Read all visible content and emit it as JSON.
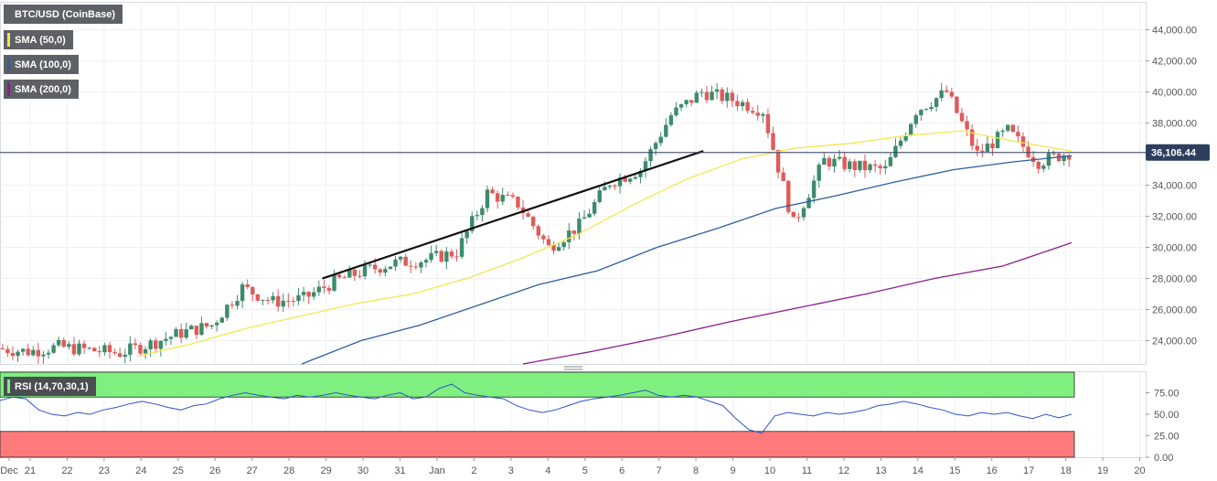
{
  "legends": {
    "symbol": "BTC/USD (CoinBase)",
    "sma50": "SMA (50,0)",
    "sma100": "SMA (100,0)",
    "sma200": "SMA (200,0)",
    "rsi": "RSI (14,70,30,1)"
  },
  "colors": {
    "up": "#3d8b6b",
    "down": "#e05a5a",
    "sma50": "#f2e84f",
    "sma100": "#2c5f9e",
    "sma200": "#8b1c8b",
    "rsi_line": "#2d55c8",
    "overbought": "#7ff07f",
    "oversold": "#ff7b7b",
    "price_line": "#2d3e5e",
    "trendline": "#111111"
  },
  "chart_data": [
    {
      "type": "candlestick",
      "title": "BTC/USD (CoinBase)",
      "ylim": [
        22500,
        45800
      ],
      "y_ticks": [
        24000,
        26000,
        28000,
        30000,
        32000,
        34000,
        36000,
        38000,
        40000,
        42000,
        44000
      ],
      "y_tick_labels": [
        "24,000.00",
        "26,000.00",
        "28,000.00",
        "30,000.00",
        "32,000.00",
        "34,000.00",
        "36,000.00",
        "38,000.00",
        "40,000.00",
        "42,000.00",
        "44,000.00"
      ],
      "x_ticks": [
        "Dec",
        "21",
        "22",
        "23",
        "24",
        "25",
        "26",
        "27",
        "28",
        "29",
        "30",
        "31",
        "Jan",
        "2",
        "3",
        "4",
        "5",
        "6",
        "7",
        "8",
        "9",
        "10",
        "11",
        "12",
        "13",
        "14",
        "15",
        "16",
        "17",
        "18",
        "19",
        "20"
      ],
      "current_price": 36106.44,
      "current_price_label": "36,106.44",
      "daily_closes": [
        23500,
        23300,
        23600,
        23400,
        23200,
        23800,
        24500,
        25000,
        27400,
        26500,
        26700,
        27800,
        28500,
        29000,
        29200,
        29700,
        33500,
        32800,
        30000,
        31400,
        34200,
        35000,
        38500,
        40000,
        39500,
        38800,
        31500,
        35600,
        35200,
        35000,
        38800,
        40000,
        36000,
        37500,
        35500,
        36100
      ],
      "sma50": [
        23000,
        23800,
        24800,
        25600,
        26400,
        27000,
        28000,
        29300,
        30800,
        32700,
        34400,
        35700,
        36400,
        36700,
        37200,
        37500,
        36800,
        36200
      ],
      "sma100": [
        22500,
        24000,
        25000,
        26300,
        27600,
        28500,
        30000,
        31200,
        32500,
        33300,
        34200,
        35000,
        35500,
        35900
      ],
      "sma200": [
        22500,
        23300,
        24200,
        25200,
        26100,
        27000,
        28000,
        28800,
        30300
      ],
      "trendline": [
        [
          8.9,
          28000
        ],
        [
          19.2,
          36200
        ]
      ]
    },
    {
      "type": "line",
      "title": "RSI (14,70,30,1)",
      "ylim": [
        0,
        100
      ],
      "y_ticks": [
        0,
        25,
        50,
        75
      ],
      "y_tick_labels": [
        "0.00",
        "25.00",
        "50.00",
        "75.00"
      ],
      "overbought": 70,
      "oversold": 30,
      "values": [
        66,
        70,
        68,
        55,
        50,
        48,
        52,
        50,
        55,
        58,
        62,
        65,
        62,
        58,
        55,
        60,
        62,
        68,
        72,
        75,
        72,
        70,
        68,
        72,
        70,
        72,
        75,
        72,
        70,
        68,
        72,
        75,
        68,
        70,
        80,
        85,
        75,
        72,
        70,
        68,
        60,
        55,
        52,
        55,
        60,
        65,
        68,
        70,
        72,
        75,
        78,
        72,
        70,
        72,
        70,
        65,
        60,
        45,
        32,
        28,
        48,
        52,
        50,
        48,
        52,
        50,
        52,
        55,
        60,
        62,
        65,
        62,
        58,
        55,
        50,
        48,
        52,
        50,
        52,
        48,
        45,
        50,
        46,
        50
      ]
    }
  ]
}
